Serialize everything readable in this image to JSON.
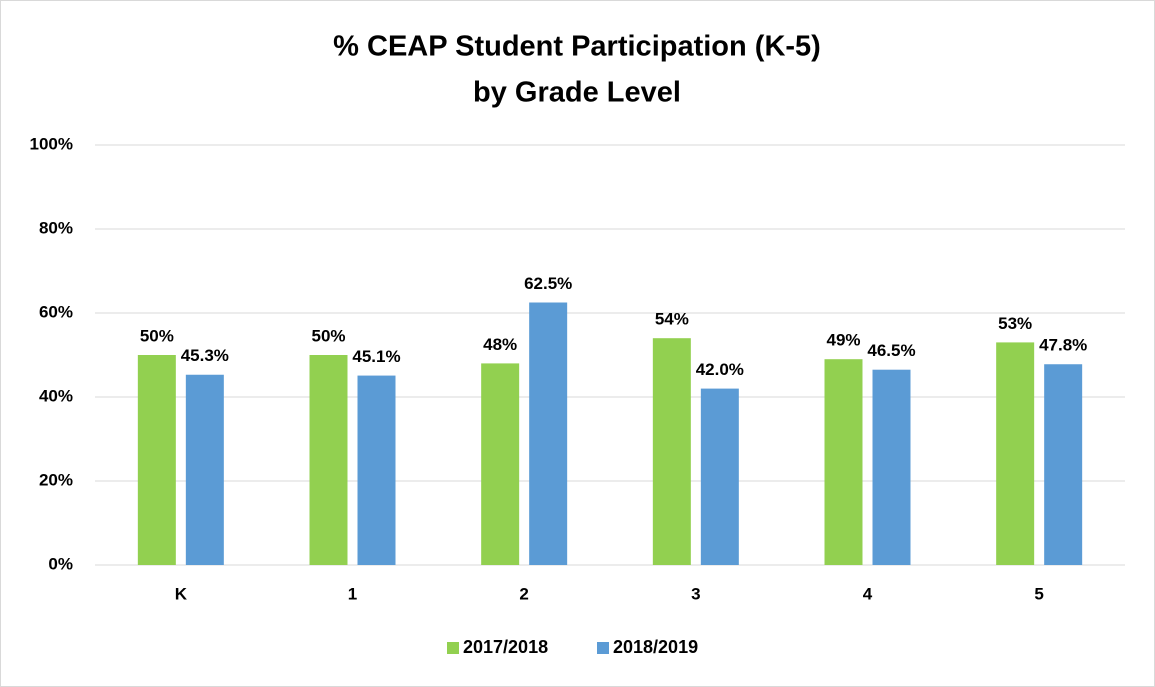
{
  "chart_data": {
    "type": "bar",
    "title": [
      "% CEAP Student Participation (K-5)",
      "by Grade Level"
    ],
    "categories": [
      "K",
      "1",
      "2",
      "3",
      "4",
      "5"
    ],
    "series": [
      {
        "name": "2017/2018",
        "color": "#92d050",
        "values": [
          50,
          50,
          48,
          54,
          49,
          53
        ],
        "value_labels": [
          "50%",
          "50%",
          "48%",
          "54%",
          "49%",
          "53%"
        ]
      },
      {
        "name": "2018/2019",
        "color": "#5b9bd5",
        "values": [
          45.3,
          45.1,
          62.5,
          42.0,
          46.5,
          47.8
        ],
        "value_labels": [
          "45.3%",
          "45.1%",
          "62.5%",
          "42.0%",
          "46.5%",
          "47.8%"
        ]
      }
    ],
    "ylim": [
      0,
      100
    ],
    "yticks": [
      {
        "value": 0,
        "label": "0%"
      },
      {
        "value": 20,
        "label": "20%"
      },
      {
        "value": 40,
        "label": "40%"
      },
      {
        "value": 60,
        "label": "60%"
      },
      {
        "value": 80,
        "label": "80%"
      },
      {
        "value": 100,
        "label": "100%"
      }
    ],
    "grid": true,
    "legend": "bottom"
  }
}
